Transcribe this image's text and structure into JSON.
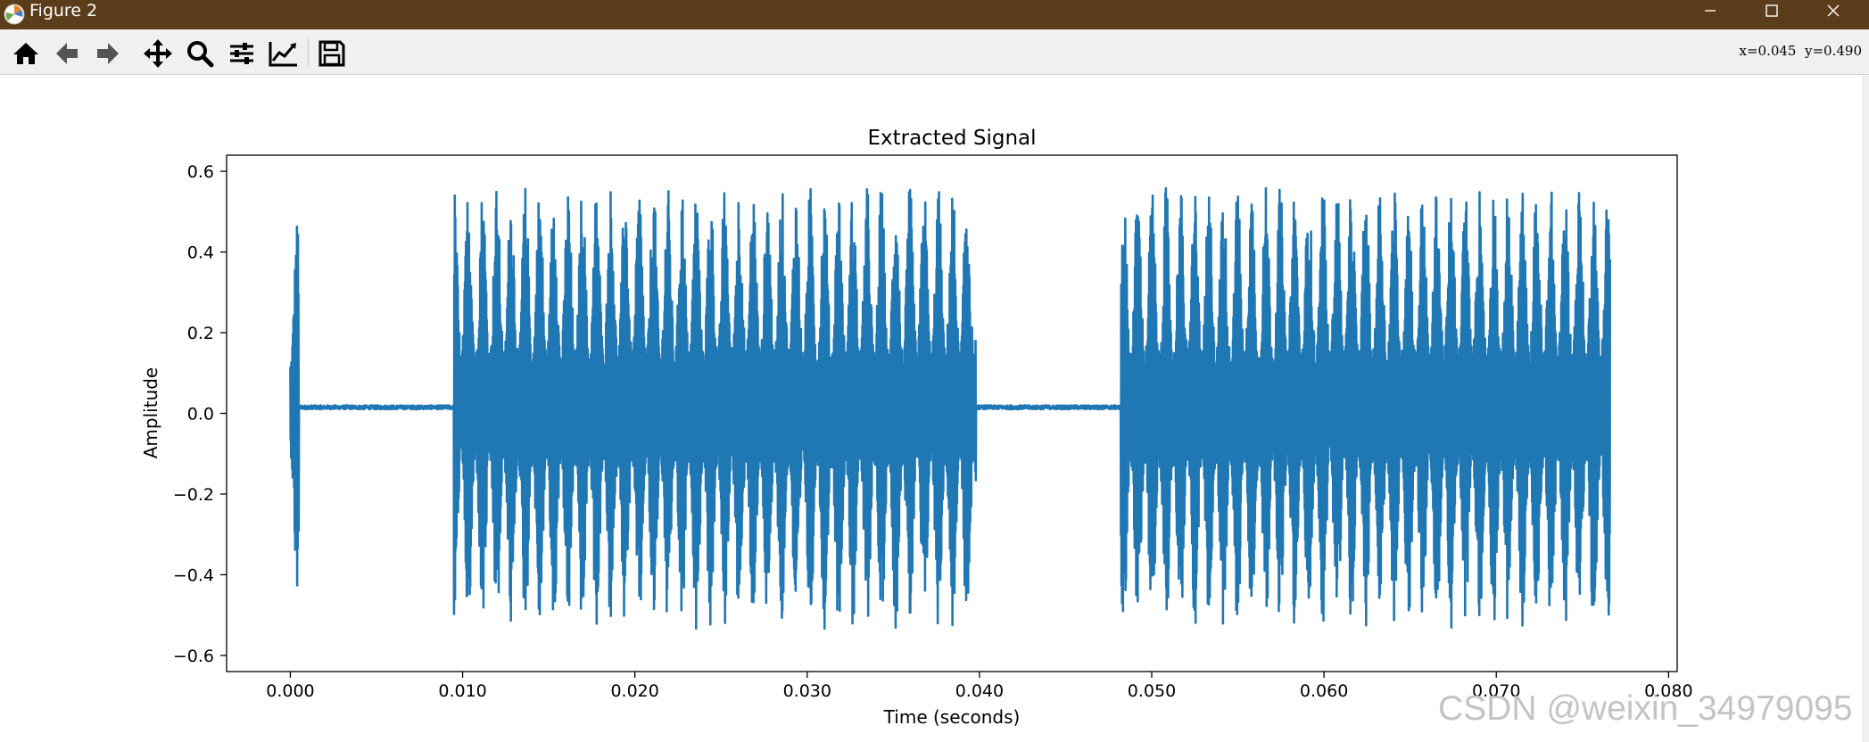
{
  "window": {
    "title": "Figure 2",
    "controls": [
      "minimize",
      "maximize",
      "close"
    ]
  },
  "toolbar": {
    "buttons": [
      "home-icon",
      "back-icon",
      "forward-icon",
      "pan-icon",
      "zoom-icon",
      "configure-subplots-icon",
      "edit-axis-icon",
      "save-icon"
    ],
    "coordinates": "x=0.045  y=0.490"
  },
  "chart_data": {
    "type": "line",
    "title": "Extracted Signal",
    "xlabel": "Time (seconds)",
    "ylabel": "Amplitude",
    "xlim": [
      -0.0037,
      0.0805
    ],
    "ylim": [
      -0.64,
      0.64
    ],
    "xticks": [
      0.0,
      0.01,
      0.02,
      0.03,
      0.04,
      0.05,
      0.06,
      0.07,
      0.08
    ],
    "xtick_labels": [
      "0.000",
      "0.010",
      "0.020",
      "0.030",
      "0.040",
      "0.050",
      "0.060",
      "0.070",
      "0.080"
    ],
    "yticks": [
      -0.6,
      -0.4,
      -0.2,
      0.0,
      0.2,
      0.4,
      0.6
    ],
    "ytick_labels": [
      "−0.6",
      "−0.4",
      "−0.2",
      "0.0",
      "0.2",
      "0.4",
      "0.6"
    ],
    "line_color": "#1f77b4",
    "grid": false,
    "baseline": 0.015,
    "x_end": 0.0766,
    "bursts": [
      {
        "start": 0.0,
        "end": 0.0005,
        "amp": 0.47
      },
      {
        "start": 0.0095,
        "end": 0.0398,
        "amp": 0.55
      },
      {
        "start": 0.0482,
        "end": 0.0766,
        "amp": 0.55
      }
    ]
  },
  "watermark": "CSDN @weixin_34979095"
}
